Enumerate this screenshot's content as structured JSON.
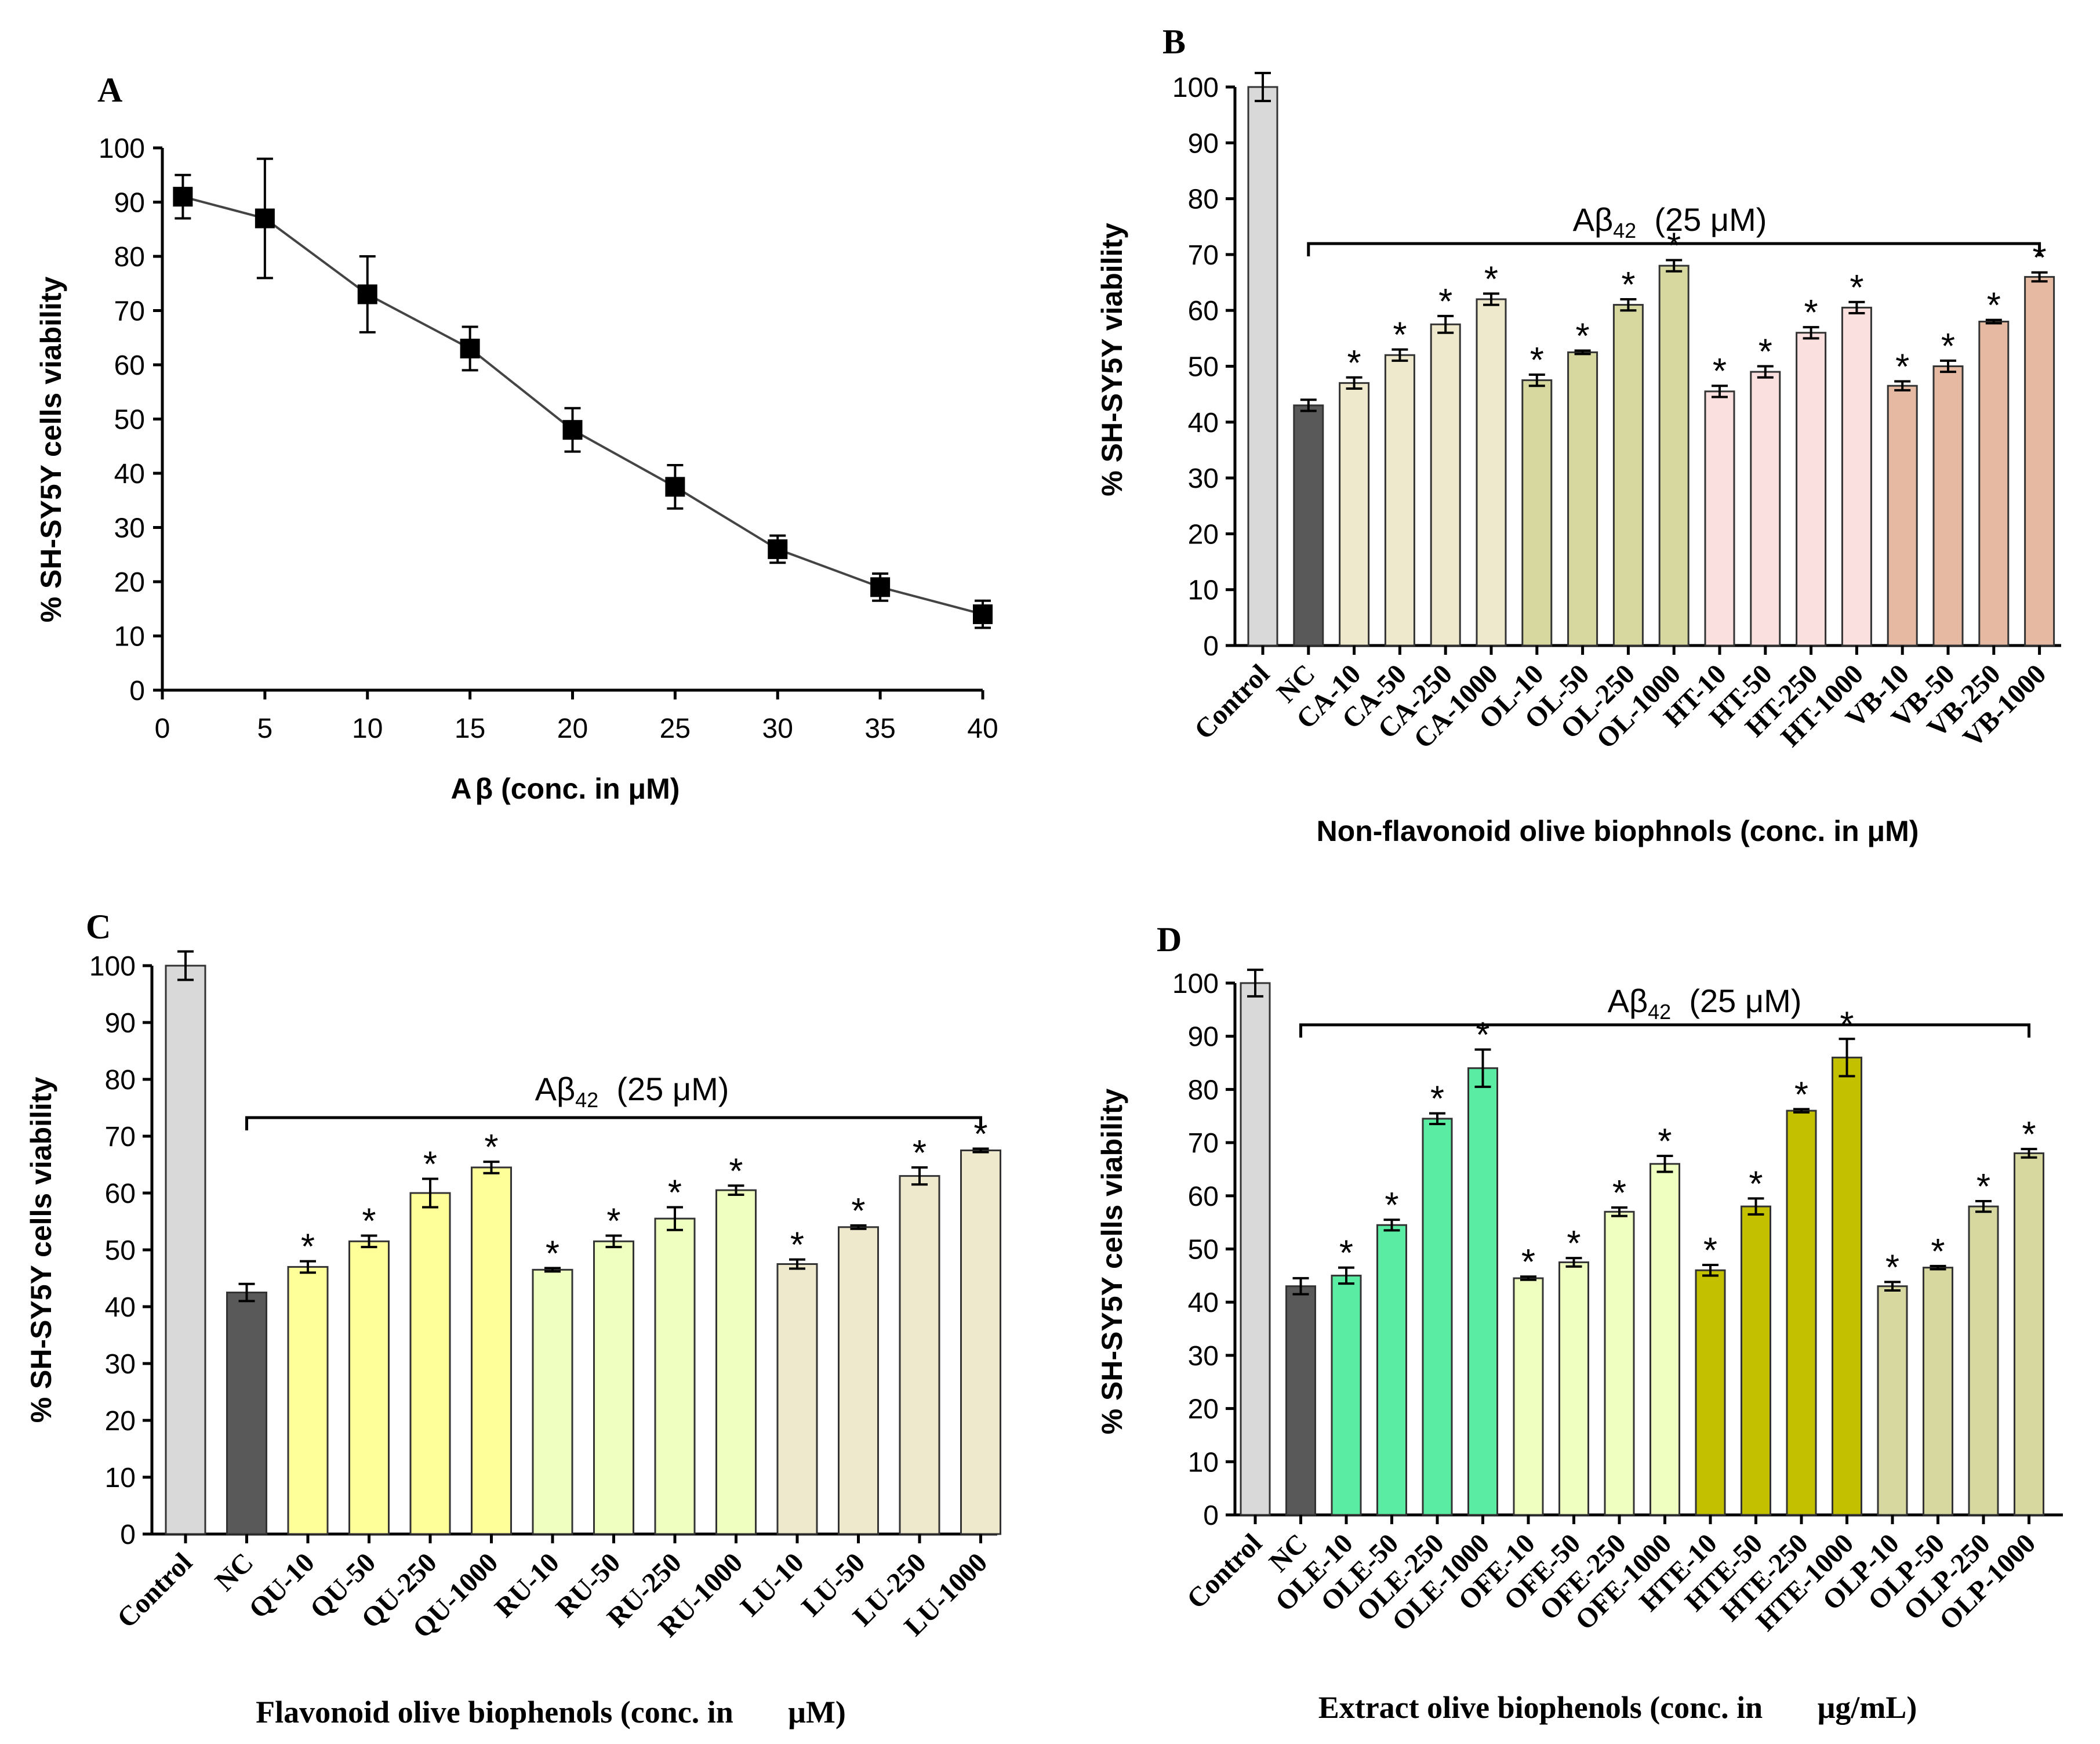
{
  "chart_data": [
    {
      "panel": "A",
      "type": "line",
      "xlabel_prefix": "A",
      "xlabel_beta": "β",
      "xlabel_suffix": " (conc. in  μM)",
      "ylabel": "% SH-SY5Y  cells viability",
      "xlim": [
        0,
        40
      ],
      "ylim": [
        0,
        100
      ],
      "xticks": [
        "0",
        "5",
        "10",
        "15",
        "20",
        "25",
        "30",
        "35",
        "40"
      ],
      "yticks": [
        "0",
        "10",
        "20",
        "30",
        "40",
        "50",
        "60",
        "70",
        "80",
        "90",
        "100"
      ],
      "x": [
        1,
        5,
        10,
        15,
        20,
        25,
        30,
        35,
        40
      ],
      "y": [
        91,
        87,
        73,
        63,
        48,
        37.5,
        26,
        19,
        14
      ],
      "err": [
        4,
        11,
        7,
        4,
        4,
        4,
        2.5,
        2.5,
        2.5
      ]
    },
    {
      "panel": "B",
      "type": "bar",
      "xlabel": "Non-flavonoid olive biophnols (conc. in μM)",
      "ylabel": "% SH-SY5Y  viability",
      "ylim": [
        0,
        100
      ],
      "yticks": [
        "0",
        "10",
        "20",
        "30",
        "40",
        "50",
        "60",
        "70",
        "80",
        "90",
        "100"
      ],
      "bracket_main": "Aβ",
      "bracket_sub": "42",
      "bracket_tail": "  (25 μM)",
      "categories": [
        "Control",
        "NC",
        "CA-10",
        "CA-50",
        "CA-250",
        "CA-1000",
        "OL-10",
        "OL-50",
        "OL-250",
        "OL-1000",
        "HT-10",
        "HT-50",
        "HT-250",
        "HT-1000",
        "VB-10",
        "VB-50",
        "VB-250",
        "VB-1000"
      ],
      "values": [
        100,
        43,
        47,
        52,
        57.5,
        62,
        47.5,
        52.5,
        61,
        68,
        45.5,
        49,
        56,
        60.5,
        46.5,
        50,
        58,
        66
      ],
      "errors": [
        2.5,
        1,
        1,
        1,
        1.5,
        1,
        1,
        0.3,
        1,
        1,
        1,
        1,
        1,
        1,
        0.8,
        1,
        0.3,
        0.8
      ],
      "significant": [
        false,
        false,
        true,
        true,
        true,
        true,
        true,
        true,
        true,
        true,
        true,
        true,
        true,
        true,
        true,
        true,
        true,
        true
      ],
      "colors": [
        "#d9d9d9",
        "#595959",
        "#eee8cd",
        "#eee8cd",
        "#eee8cd",
        "#eee8cd",
        "#d7d7a0",
        "#d7d7a0",
        "#d7d7a0",
        "#d7d7a0",
        "#fbe0e0",
        "#fbe0e0",
        "#fbe0e0",
        "#fbe0e0",
        "#e6b9a3",
        "#e6b9a3",
        "#e6b9a3",
        "#e6b9a3"
      ]
    },
    {
      "panel": "C",
      "type": "bar",
      "xlabel": "Flavonoid olive biophenols (conc. in       μM)",
      "ylabel": "% SH-SY5Y cells viability",
      "ylim": [
        0,
        100
      ],
      "yticks": [
        "0",
        "10",
        "20",
        "30",
        "40",
        "50",
        "60",
        "70",
        "80",
        "90",
        "100"
      ],
      "bracket_main": "Aβ",
      "bracket_sub": "42",
      "bracket_tail": "  (25 μM)",
      "categories": [
        "Control",
        "NC",
        "QU-10",
        "QU-50",
        "QU-250",
        "QU-1000",
        "RU-10",
        "RU-50",
        "RU-250",
        "RU-1000",
        "LU-10",
        "LU-50",
        "LU-250",
        "LU-1000"
      ],
      "values": [
        100,
        42.5,
        47,
        51.5,
        60,
        64.5,
        46.5,
        51.5,
        55.5,
        60.5,
        47.5,
        54,
        63,
        67.5
      ],
      "errors": [
        2.5,
        1.5,
        1,
        1,
        2.5,
        1,
        0.3,
        1,
        2,
        0.8,
        0.8,
        0.3,
        1.5,
        0.3
      ],
      "significant": [
        false,
        false,
        true,
        true,
        true,
        true,
        true,
        true,
        true,
        true,
        true,
        true,
        true,
        true
      ],
      "colors": [
        "#d9d9d9",
        "#595959",
        "#ffff99",
        "#ffff99",
        "#ffff99",
        "#ffff99",
        "#efffc0",
        "#efffc0",
        "#efffc0",
        "#efffc0",
        "#eee8cd",
        "#eee8cd",
        "#eee8cd",
        "#eee8cd"
      ]
    },
    {
      "panel": "D",
      "type": "bar",
      "xlabel": "Extract olive biophenols (conc. in       μg/mL)",
      "ylabel": "% SH-SY5Y cells viability",
      "ylim": [
        0,
        100
      ],
      "yticks": [
        "0",
        "10",
        "20",
        "30",
        "40",
        "50",
        "60",
        "70",
        "80",
        "90",
        "100"
      ],
      "bracket_main": "Aβ",
      "bracket_sub": "42",
      "bracket_tail": "  (25 μM)",
      "categories": [
        "Control",
        "NC",
        "OLE-10",
        "OLE-50",
        "OLE-250",
        "OLE-1000",
        "OFE-10",
        "OFE-50",
        "OFE-250",
        "OFE-1000",
        "HTE-10",
        "HTE-50",
        "HTE-250",
        "HTE-1000",
        "OLP-10",
        "OLP-50",
        "OLP-250",
        "OLP-1000"
      ],
      "values": [
        100,
        43,
        45,
        54.5,
        74.5,
        84,
        44.5,
        47.5,
        57,
        66,
        46,
        58,
        76,
        86,
        43,
        46.5,
        58,
        68
      ],
      "errors": [
        2.5,
        1.5,
        1.5,
        1,
        1,
        3.5,
        0.3,
        0.8,
        0.8,
        1.5,
        1,
        1.5,
        0.3,
        3.5,
        0.8,
        0.3,
        1,
        0.8
      ],
      "significant": [
        false,
        false,
        true,
        true,
        true,
        true,
        true,
        true,
        true,
        true,
        true,
        true,
        true,
        true,
        true,
        true,
        true,
        true
      ],
      "colors": [
        "#d9d9d9",
        "#595959",
        "#5aeca2",
        "#5aeca2",
        "#5aeca2",
        "#5aeca2",
        "#efffc0",
        "#efffc0",
        "#efffc0",
        "#efffc0",
        "#c3c000",
        "#c3c000",
        "#c3c000",
        "#c3c000",
        "#d7d7a0",
        "#d7d7a0",
        "#d7d7a0",
        "#d7d7a0"
      ]
    }
  ],
  "panels": {
    "A": "A",
    "B": "B",
    "C": "C",
    "D": "D"
  },
  "sig_marker": "*"
}
